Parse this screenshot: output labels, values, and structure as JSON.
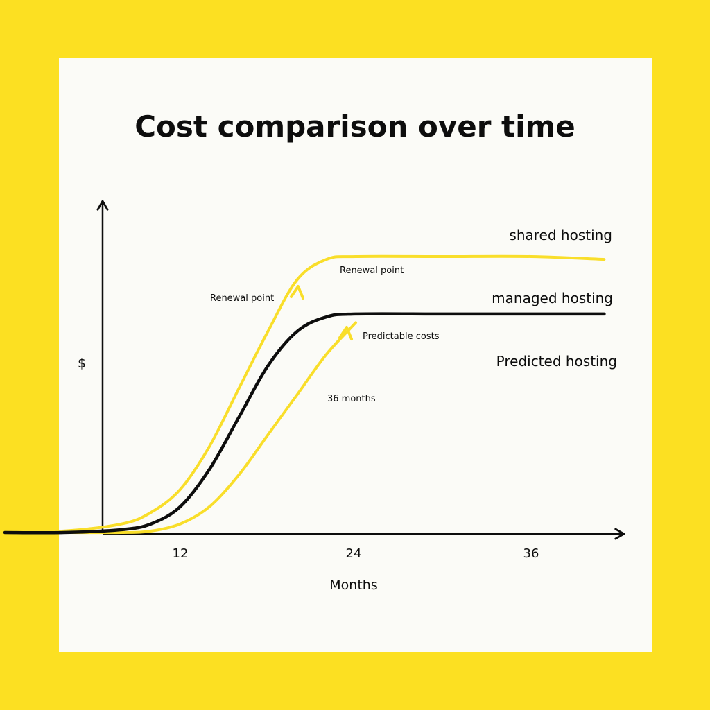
{
  "colors": {
    "background": "#FCE022",
    "card": "#FBFBF7",
    "shared_line": "#F9DE2A",
    "managed_line": "#0d0d0d",
    "predicted_line": "#F9DE2A",
    "axis": "#0d0d0d"
  },
  "chart_data": {
    "type": "line",
    "title": "Cost comparison over time",
    "xlabel": "Months",
    "ylabel": "$",
    "xlim": [
      0,
      41
    ],
    "ylim": [
      0,
      100
    ],
    "xticks": [
      12,
      24,
      36
    ],
    "xtick_labels": [
      "12",
      "24",
      "36"
    ],
    "grid": false,
    "series": [
      {
        "name": "shared hosting",
        "color": "#F9DE2A",
        "x": [
          0,
          4,
          8,
          10,
          12,
          14,
          16,
          18,
          20,
          22,
          24,
          30,
          36,
          41
        ],
        "y": [
          0,
          0.5,
          3,
          7,
          15,
          30,
          50,
          70,
          88,
          95,
          96,
          96,
          96,
          95
        ]
      },
      {
        "name": "managed hosting",
        "color": "#0d0d0d",
        "x": [
          0,
          4,
          8,
          10,
          12,
          14,
          16,
          18,
          20,
          22,
          24,
          30,
          36,
          41
        ],
        "y": [
          0,
          0,
          1,
          3,
          9,
          22,
          40,
          58,
          70,
          75,
          76,
          76,
          76,
          76
        ]
      },
      {
        "name": "Predicted hosting",
        "color": "#F9DE2A",
        "x": [
          0,
          4,
          8,
          10,
          12,
          14,
          16,
          18,
          20,
          22,
          24
        ],
        "y": [
          0,
          0,
          0,
          0.5,
          3,
          9,
          20,
          34,
          48,
          62,
          73
        ]
      }
    ],
    "annotations": [
      {
        "text": "Renewal point",
        "x": 14,
        "y": 85
      },
      {
        "text": "Renewal point",
        "x": 27,
        "y": 95
      },
      {
        "text": "Predictable costs",
        "x": 29,
        "y": 72
      },
      {
        "text": "36 months",
        "x": 26,
        "y": 48
      }
    ]
  }
}
